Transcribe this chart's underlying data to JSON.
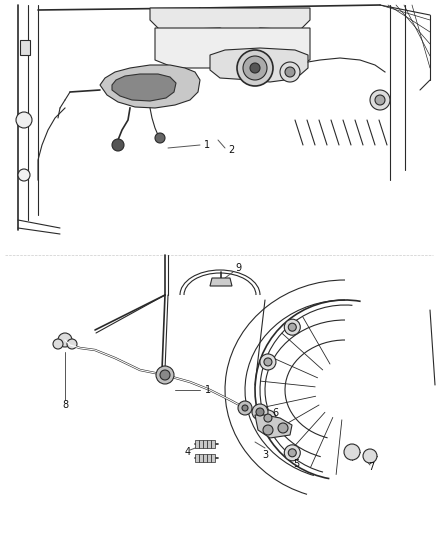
{
  "background_color": "#ffffff",
  "line_color": "#2a2a2a",
  "label_color": "#111111",
  "figure_width": 4.38,
  "figure_height": 5.33,
  "dpi": 100,
  "img_extent": [
    0,
    438,
    0,
    533
  ]
}
